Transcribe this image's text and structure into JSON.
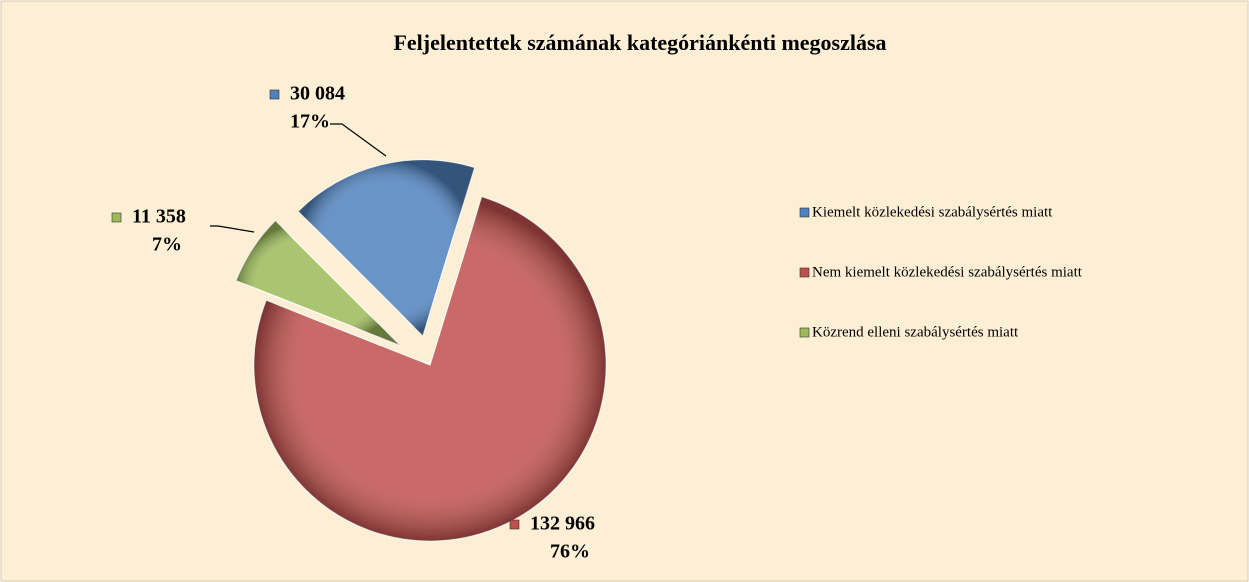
{
  "chart_data": {
    "type": "pie",
    "title": "Feljelentettek számának kategóriánkénti megoszlása",
    "categories": [
      "Kiemelt közlekedési szabálysértés miatt",
      "Nem kiemelt közlekedési szabálysértés miatt",
      "Közrend elleni szabálysértés miatt"
    ],
    "values": [
      30084,
      132966,
      11358
    ],
    "value_labels": [
      "30 084",
      "132 966",
      "11 358"
    ],
    "percents": [
      17,
      76,
      7
    ],
    "percent_labels": [
      "17%",
      "76%",
      "7%"
    ],
    "colors": [
      "#4f81bd",
      "#c0504d",
      "#9bbb59"
    ],
    "legend": "right"
  }
}
